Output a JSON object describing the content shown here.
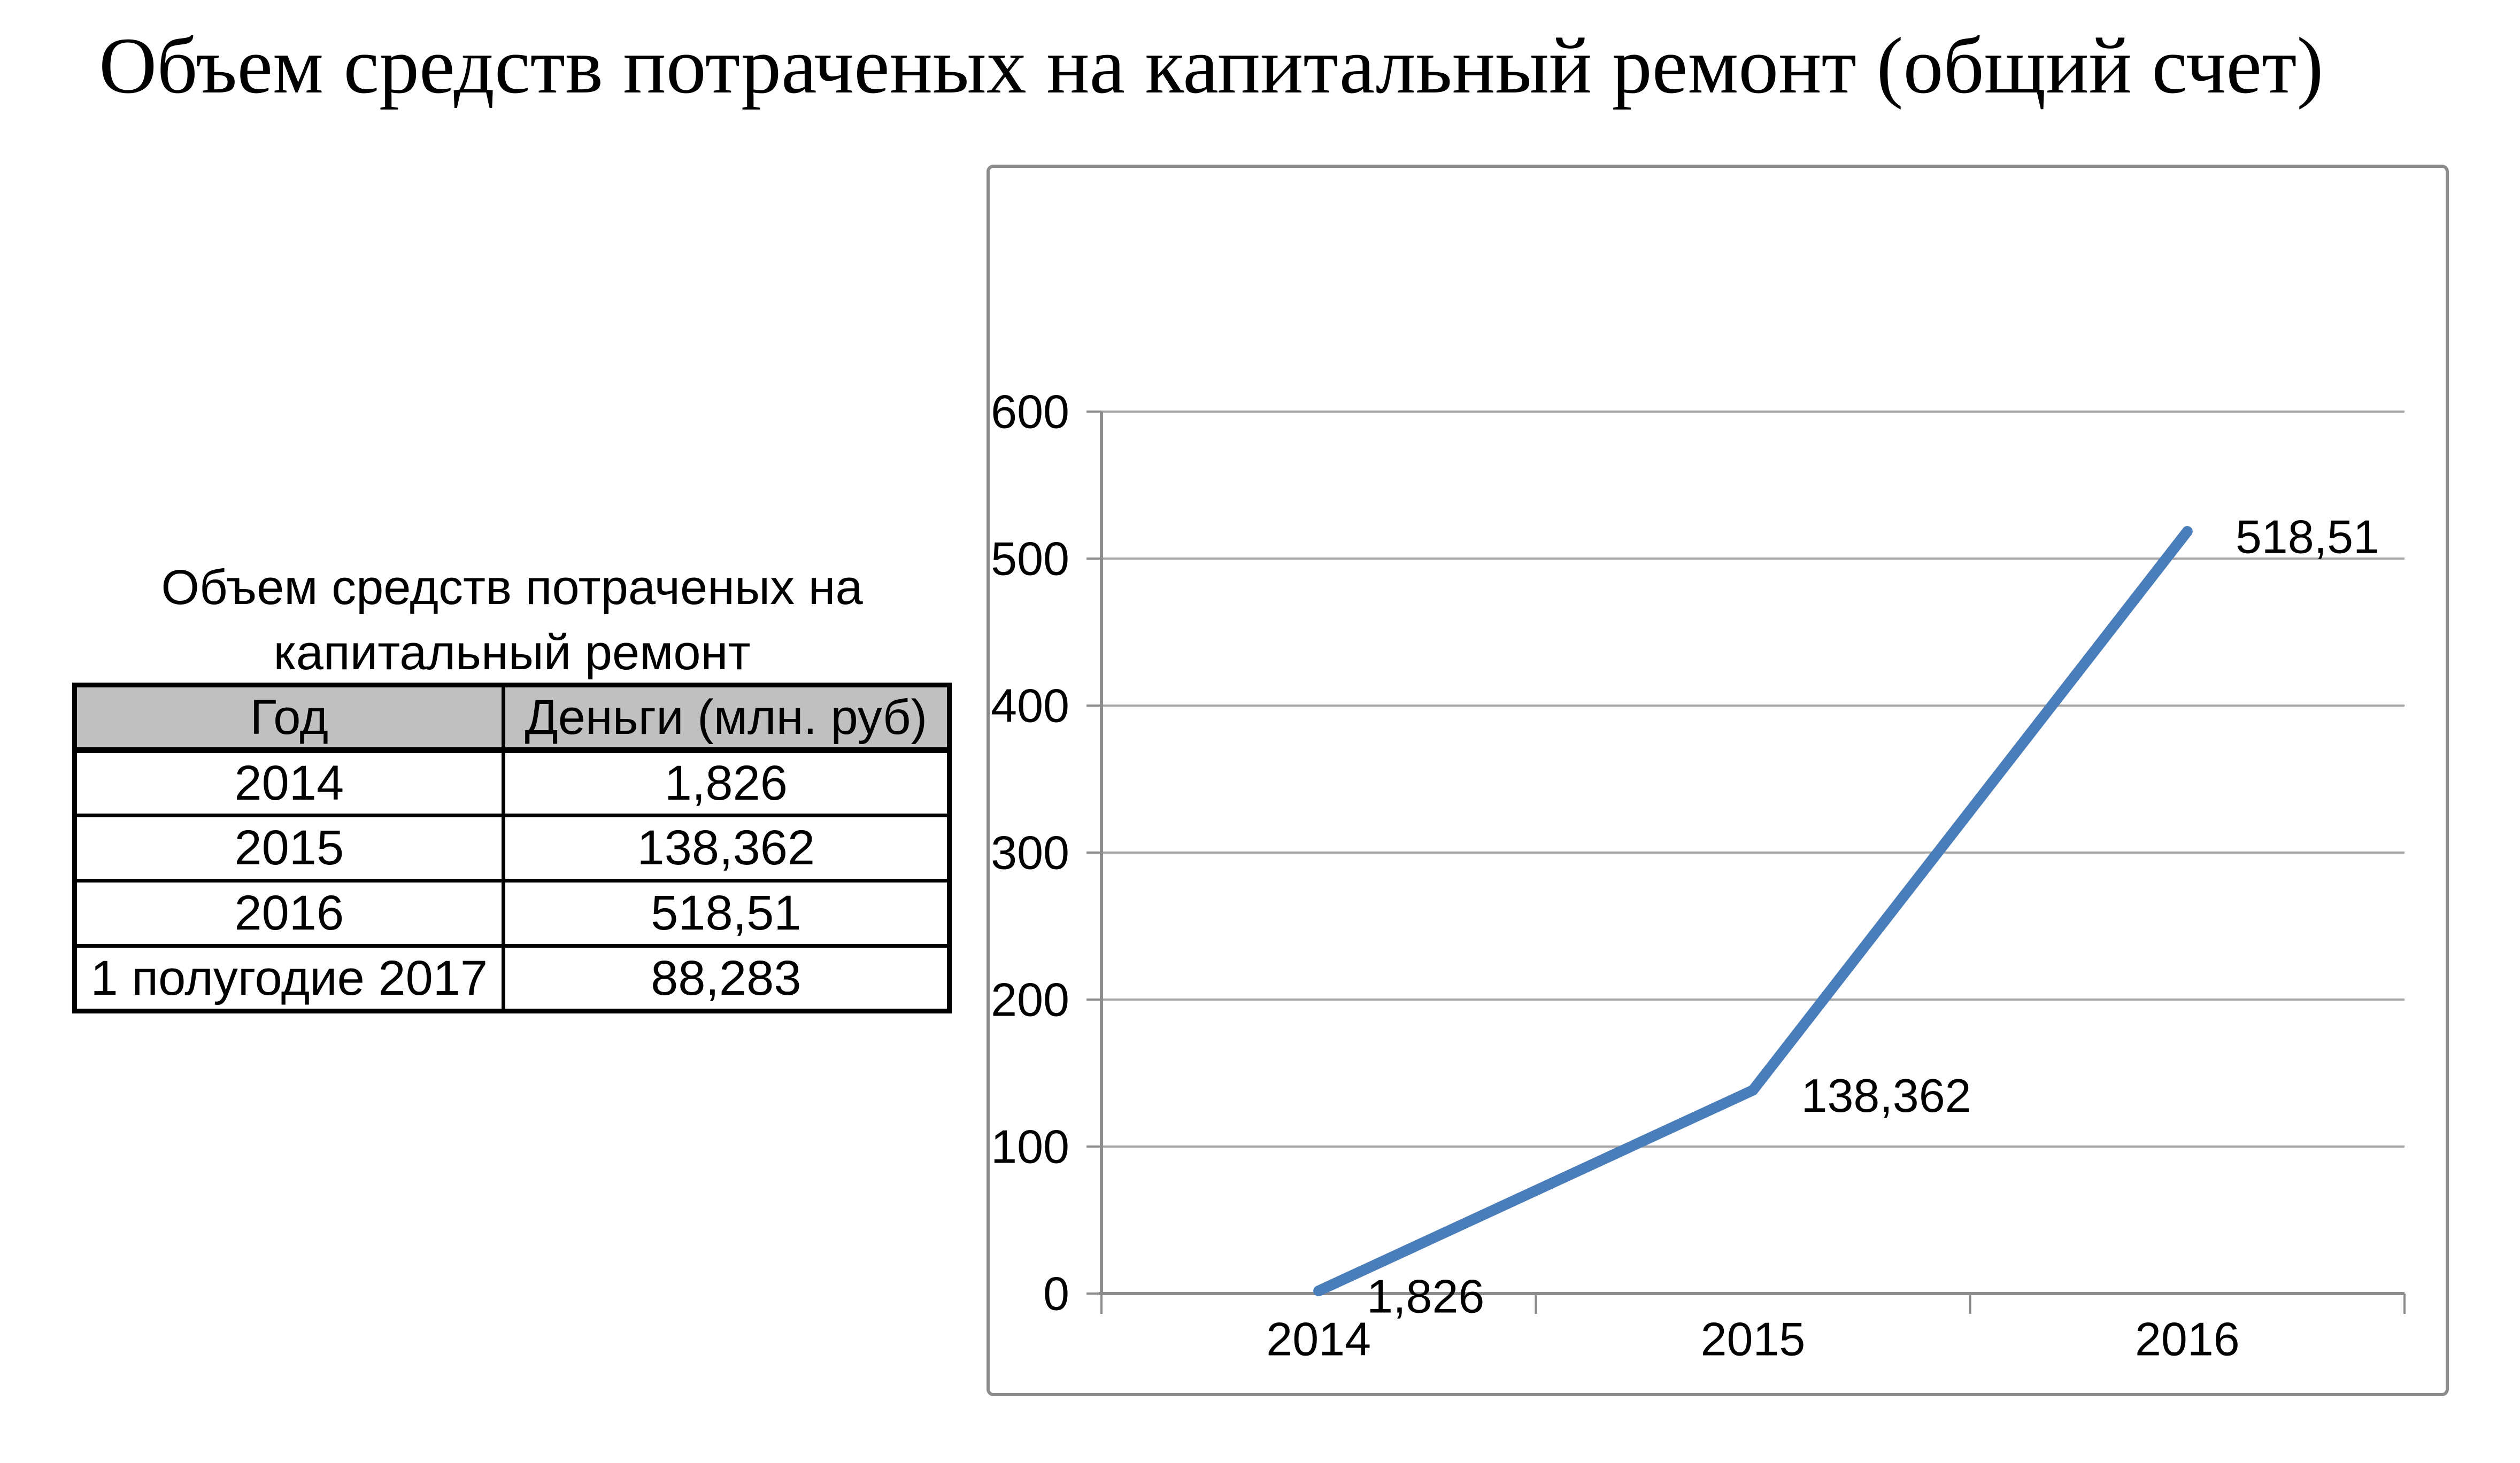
{
  "page": {
    "title": "Объем средств потраченых на капитальный ремонт (общий счет)"
  },
  "table": {
    "title_lines": [
      "Объем средств потраченых на",
      "капитальный ремонт"
    ],
    "columns": [
      "Год",
      "Деньги (млн. руб)"
    ],
    "rows": [
      [
        "2014",
        "1,826"
      ],
      [
        "2015",
        "138,362"
      ],
      [
        "2016",
        "518,51"
      ],
      [
        "1 полугодие 2017",
        "88,283"
      ]
    ],
    "header_bg": "#c0c0c0",
    "border_color": "#000000"
  },
  "chart_data": {
    "type": "line",
    "categories": [
      "2014",
      "2015",
      "2016"
    ],
    "series": [
      {
        "name": "Деньги (млн. руб)",
        "values": [
          1.826,
          138.362,
          518.51
        ]
      }
    ],
    "data_labels": [
      "1,826",
      "138,362",
      "518,51"
    ],
    "title": "",
    "xlabel": "",
    "ylabel": "",
    "ylim": [
      0,
      600
    ],
    "ytick_interval": 100,
    "yticks": [
      "0",
      "100",
      "200",
      "300",
      "400",
      "500",
      "600"
    ],
    "grid": true,
    "legend": "none",
    "line_color": "#4a7ebb",
    "gridline_color": "#a6a6a6",
    "axis_color": "#8c8c8c",
    "frame_color": "#8c8c8c",
    "label_color": "#000000",
    "plot_bg": "#ffffff"
  }
}
